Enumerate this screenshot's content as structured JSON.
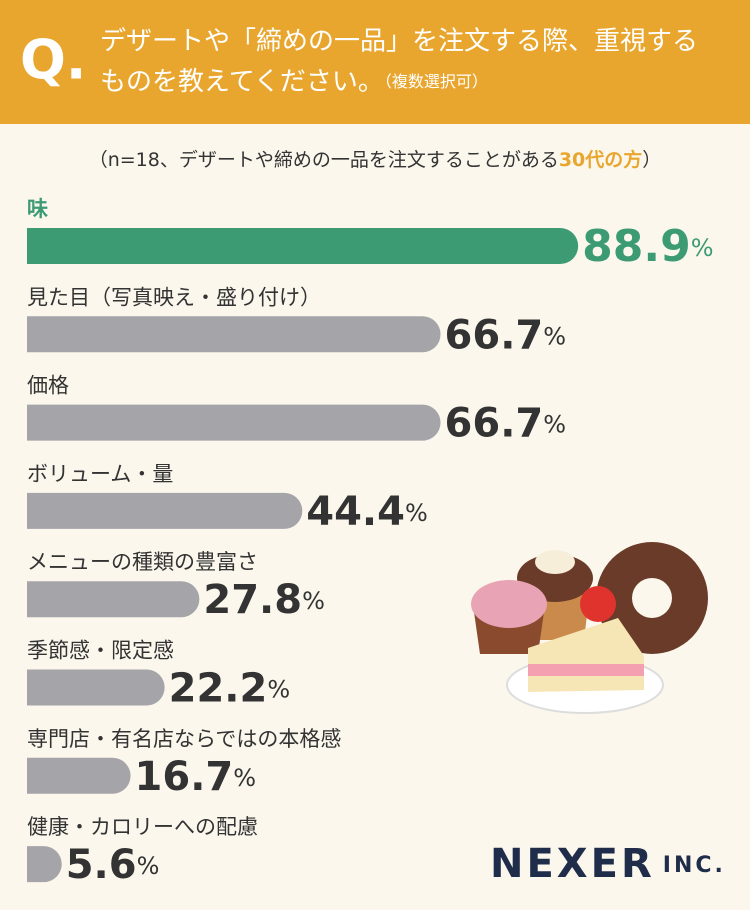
{
  "chart_data": {
    "type": "bar",
    "question_label": "Q.",
    "title_lines": [
      "デザートや「締めの一品」を注文する際、重視する",
      "ものを教えてください。"
    ],
    "note": "（複数選択可）",
    "subtitle_parts": [
      "（n=18、デザートや締めの一品を注文することがある",
      "30代の方",
      "）"
    ],
    "categories": [
      "味",
      "見た目（写真映え・盛り付け）",
      "価格",
      "ボリューム・量",
      "メニューの種類の豊富さ",
      "季節感・限定感",
      "専門店・有名店ならではの本格感",
      "健康・カロリーへの配慮"
    ],
    "values": [
      88.9,
      66.7,
      66.7,
      44.4,
      27.8,
      22.2,
      16.7,
      5.6
    ],
    "unit": "%",
    "highlight_color": "#3d9b74",
    "color": "#a4a4a9",
    "logo": "NEXER",
    "logo_suffix": "INC."
  }
}
